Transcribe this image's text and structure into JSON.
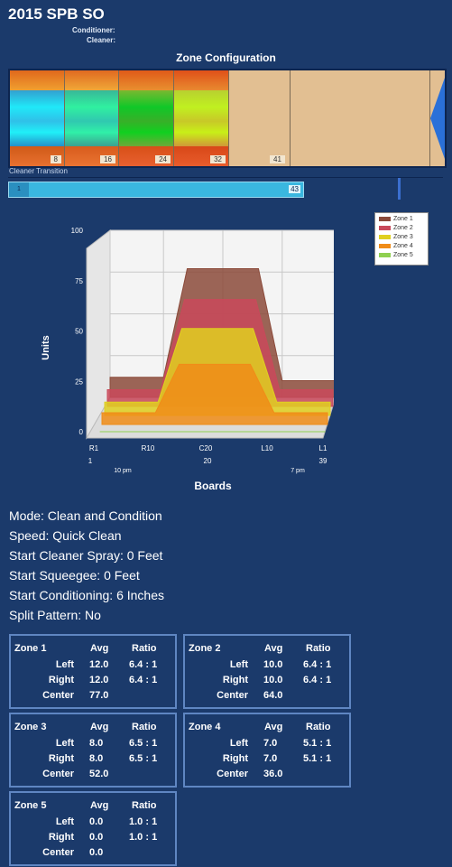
{
  "header": {
    "title": "2015 SPB SO",
    "conditioner_label": "Conditioner:",
    "cleaner_label": "Cleaner:"
  },
  "zone_config": {
    "title": "Zone Configuration",
    "markers": [
      "8",
      "16",
      "24",
      "32",
      "41"
    ]
  },
  "cleaner_transition": {
    "label": "Cleaner Transition",
    "left_value": "1",
    "value": "43"
  },
  "legend": [
    {
      "label": "Zone 1",
      "color": "#8b4a3a"
    },
    {
      "label": "Zone 2",
      "color": "#c9495a"
    },
    {
      "label": "Zone 3",
      "color": "#e0d020"
    },
    {
      "label": "Zone 4",
      "color": "#f08c18"
    },
    {
      "label": "Zone 5",
      "color": "#8fd050"
    }
  ],
  "chart_data": {
    "type": "area",
    "ylabel": "Units",
    "xlabel": "Boards",
    "ylim": [
      0,
      100
    ],
    "yticks": [
      "0",
      "25",
      "50",
      "75",
      "100"
    ],
    "x_tick_labels": [
      "R1",
      "R10",
      "C20",
      "L10",
      "L1"
    ],
    "x_numbers": [
      "1",
      "20",
      "39"
    ],
    "x_notes": [
      "10 pm",
      "7 pm"
    ],
    "x": [
      1,
      5,
      10,
      14,
      20,
      26,
      30,
      35,
      39
    ],
    "series": [
      {
        "name": "Zone 1",
        "values": [
          12,
          12,
          12,
          77,
          77,
          77,
          10,
          10,
          10
        ]
      },
      {
        "name": "Zone 2",
        "values": [
          10,
          10,
          10,
          64,
          64,
          64,
          10,
          10,
          10
        ]
      },
      {
        "name": "Zone 3",
        "values": [
          8,
          8,
          8,
          52,
          52,
          52,
          8,
          8,
          8
        ]
      },
      {
        "name": "Zone 4",
        "values": [
          7,
          7,
          7,
          36,
          36,
          36,
          7,
          7,
          7
        ]
      },
      {
        "name": "Zone 5",
        "values": [
          0,
          0,
          0,
          0,
          0,
          0,
          0,
          0,
          0
        ]
      }
    ]
  },
  "settings": {
    "mode": "Mode: Clean and Condition",
    "speed": "Speed: Quick Clean",
    "cleaner_spray": "Start Cleaner Spray: 0 Feet",
    "squeegee": "Start Squeegee: 0 Feet",
    "conditioning": "Start Conditioning: 6 Inches",
    "split": "Split Pattern: No"
  },
  "zones": [
    {
      "name": "Zone 1",
      "avg_header": "Avg",
      "ratio_header": "Ratio",
      "left_label": "Left",
      "right_label": "Right",
      "center_label": "Center",
      "left_avg": "12.0",
      "left_ratio": "6.4 : 1",
      "right_avg": "12.0",
      "right_ratio": "6.4 : 1",
      "center": "77.0"
    },
    {
      "name": "Zone 2",
      "avg_header": "Avg",
      "ratio_header": "Ratio",
      "left_label": "Left",
      "right_label": "Right",
      "center_label": "Center",
      "left_avg": "10.0",
      "left_ratio": "6.4 : 1",
      "right_avg": "10.0",
      "right_ratio": "6.4 : 1",
      "center": "64.0"
    },
    {
      "name": "Zone 3",
      "avg_header": "Avg",
      "ratio_header": "Ratio",
      "left_label": "Left",
      "right_label": "Right",
      "center_label": "Center",
      "left_avg": "8.0",
      "left_ratio": "6.5 : 1",
      "right_avg": "8.0",
      "right_ratio": "6.5 : 1",
      "center": "52.0"
    },
    {
      "name": "Zone 4",
      "avg_header": "Avg",
      "ratio_header": "Ratio",
      "left_label": "Left",
      "right_label": "Right",
      "center_label": "Center",
      "left_avg": "7.0",
      "left_ratio": "5.1 : 1",
      "right_avg": "7.0",
      "right_ratio": "5.1 : 1",
      "center": "36.0"
    },
    {
      "name": "Zone 5",
      "avg_header": "Avg",
      "ratio_header": "Ratio",
      "left_label": "Left",
      "right_label": "Right",
      "center_label": "Center",
      "left_avg": "0.0",
      "left_ratio": "1.0 : 1",
      "right_avg": "0.0",
      "right_ratio": "1.0 : 1",
      "center": "0.0"
    }
  ]
}
